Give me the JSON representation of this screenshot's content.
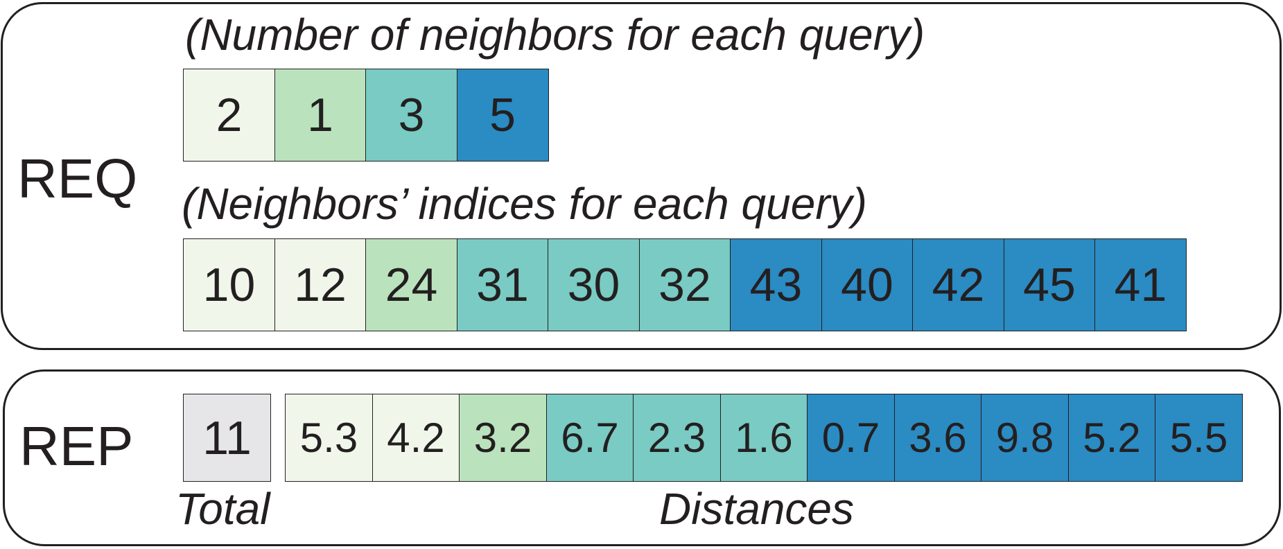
{
  "colors": {
    "g0": "#e6e6e8",
    "g1": "#f0f7ea",
    "g2": "#bae3bd",
    "g3": "#79cbc3",
    "g4": "#2b8bc3",
    "stroke": "#231f20"
  },
  "req": {
    "label": "REQ",
    "counts_caption": "(Number of neighbors for each query)",
    "counts": [
      {
        "value": "2",
        "group": "g1"
      },
      {
        "value": "1",
        "group": "g2"
      },
      {
        "value": "3",
        "group": "g3"
      },
      {
        "value": "5",
        "group": "g4"
      }
    ],
    "indices_caption": "(Neighbors’ indices for each query)",
    "indices": [
      {
        "value": "10",
        "group": "g1"
      },
      {
        "value": "12",
        "group": "g1"
      },
      {
        "value": "24",
        "group": "g2"
      },
      {
        "value": "31",
        "group": "g3"
      },
      {
        "value": "30",
        "group": "g3"
      },
      {
        "value": "32",
        "group": "g3"
      },
      {
        "value": "43",
        "group": "g4"
      },
      {
        "value": "40",
        "group": "g4"
      },
      {
        "value": "42",
        "group": "g4"
      },
      {
        "value": "45",
        "group": "g4"
      },
      {
        "value": "41",
        "group": "g4"
      }
    ]
  },
  "rep": {
    "label": "REP",
    "total": {
      "value": "11",
      "group": "g0"
    },
    "total_caption": "Total",
    "distances_caption": "Distances",
    "distances": [
      {
        "value": "5.3",
        "group": "g1"
      },
      {
        "value": "4.2",
        "group": "g1"
      },
      {
        "value": "3.2",
        "group": "g2"
      },
      {
        "value": "6.7",
        "group": "g3"
      },
      {
        "value": "2.3",
        "group": "g3"
      },
      {
        "value": "1.6",
        "group": "g3"
      },
      {
        "value": "0.7",
        "group": "g4"
      },
      {
        "value": "3.6",
        "group": "g4"
      },
      {
        "value": "9.8",
        "group": "g4"
      },
      {
        "value": "5.2",
        "group": "g4"
      },
      {
        "value": "5.5",
        "group": "g4"
      }
    ]
  }
}
